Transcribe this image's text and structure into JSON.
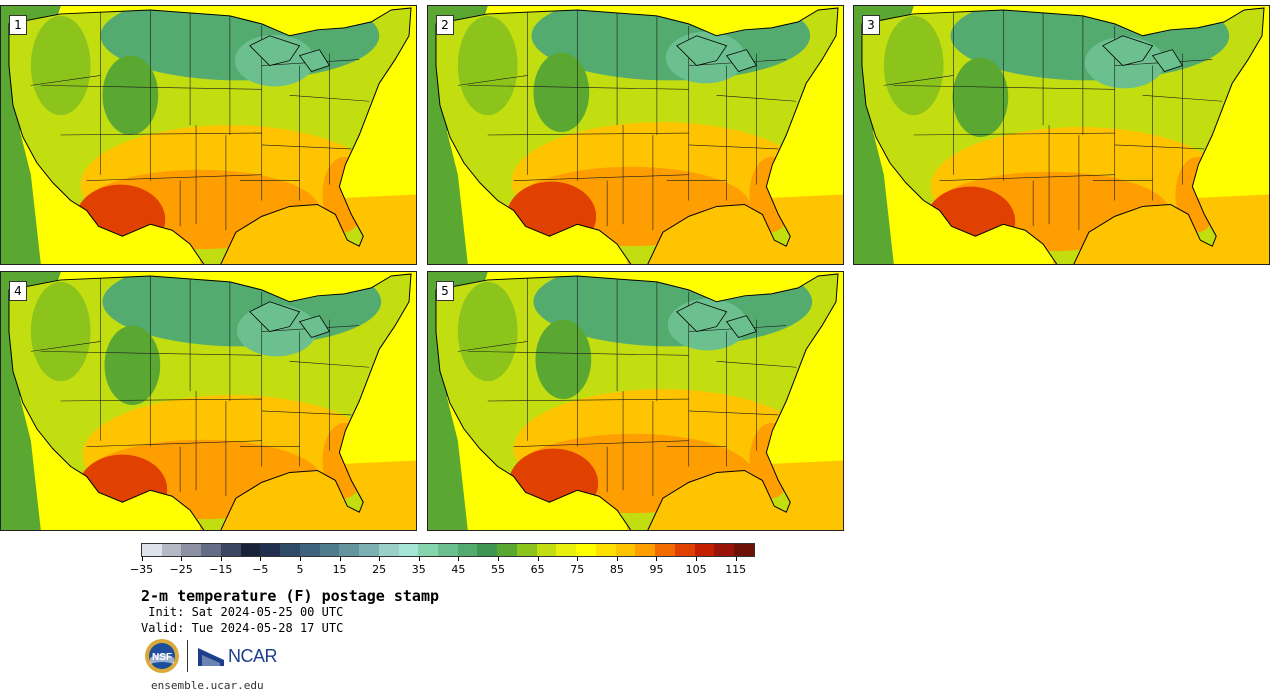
{
  "stamps": [
    {
      "label": "1",
      "variant": 0
    },
    {
      "label": "2",
      "variant": 1
    },
    {
      "label": "3",
      "variant": 2
    },
    {
      "label": "4",
      "variant": 3
    },
    {
      "label": "5",
      "variant": 4
    }
  ],
  "colorbar": {
    "colors": [
      "#dfe2ea",
      "#b5b9c6",
      "#8c92a4",
      "#646d85",
      "#3b4663",
      "#1a2238",
      "#21304e",
      "#2f4a67",
      "#3e637c",
      "#4e7c8e",
      "#64949e",
      "#7cb0b2",
      "#9ad0c7",
      "#a6e6d8",
      "#87d5ac",
      "#6cc08f",
      "#54ab70",
      "#3e9651",
      "#5aa832",
      "#8cc41c",
      "#c2de11",
      "#e8f00d",
      "#ffff00",
      "#ffe000",
      "#ffc400",
      "#ff9e00",
      "#f26b00",
      "#e04000",
      "#c42000",
      "#9a1308",
      "#6e1208"
    ],
    "tick_labels": [
      "−35",
      "−25",
      "−15",
      "−5",
      "5",
      "15",
      "25",
      "35",
      "45",
      "55",
      "65",
      "75",
      "85",
      "95",
      "105",
      "115"
    ],
    "min": -35,
    "max": 115,
    "first_tick": -35,
    "step": 10
  },
  "title": "2-m temperature (F) postage stamp",
  "init": " Init: Sat 2024-05-25 00 UTC",
  "valid": "Valid: Tue 2024-05-28 17 UTC",
  "logos": {
    "nsf_text": "NSF",
    "ncar_text": "NCAR"
  },
  "url": "ensemble.ucar.edu",
  "map_colors": {
    "ocean_pacific": "#3e9651",
    "ocean_atlantic": "#ffff00",
    "gulf": "#ffc400",
    "north": "#54ab70",
    "greatlakes": "#6cc08f",
    "central": "#c2de11",
    "plains": "#ffc400",
    "south": "#ff9e00",
    "hot": "#e04000",
    "mountains": "#8cc41c",
    "coast": "#5aa832"
  }
}
